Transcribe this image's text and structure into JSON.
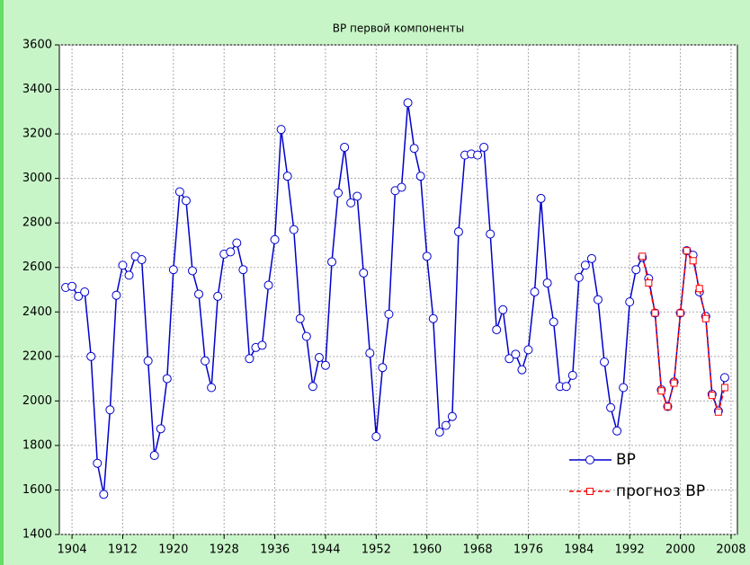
{
  "chart_data": {
    "type": "line",
    "title": "ВР первой компоненты",
    "series": [
      {
        "name": "ВР",
        "color": "#0000cc",
        "marker": "circle",
        "dash": false,
        "x": [
          1903,
          1904,
          1905,
          1906,
          1907,
          1908,
          1909,
          1910,
          1911,
          1912,
          1913,
          1914,
          1915,
          1916,
          1917,
          1918,
          1919,
          1920,
          1921,
          1922,
          1923,
          1924,
          1925,
          1926,
          1927,
          1928,
          1929,
          1930,
          1931,
          1932,
          1933,
          1934,
          1935,
          1936,
          1937,
          1938,
          1939,
          1940,
          1941,
          1942,
          1943,
          1944,
          1945,
          1946,
          1947,
          1948,
          1949,
          1950,
          1951,
          1952,
          1953,
          1954,
          1955,
          1956,
          1957,
          1958,
          1959,
          1960,
          1961,
          1962,
          1963,
          1964,
          1965,
          1966,
          1967,
          1968,
          1969,
          1970,
          1971,
          1972,
          1973,
          1974,
          1975,
          1976,
          1977,
          1978,
          1979,
          1980,
          1981,
          1982,
          1983,
          1984,
          1985,
          1986,
          1987,
          1988,
          1989,
          1990,
          1991,
          1992,
          1993,
          1994,
          1995,
          1996,
          1997,
          1998,
          1999,
          2000,
          2001,
          2002,
          2003,
          2004,
          2005,
          2006,
          2007
        ],
        "values": [
          2510,
          2515,
          2470,
          2490,
          2200,
          1720,
          1580,
          1960,
          2475,
          2610,
          2565,
          2650,
          2635,
          2180,
          1755,
          1875,
          2100,
          2590,
          2940,
          2900,
          2585,
          2480,
          2180,
          2060,
          2470,
          2660,
          2670,
          2710,
          2590,
          2190,
          2240,
          2250,
          2520,
          2725,
          3220,
          3010,
          2770,
          2370,
          2290,
          2065,
          2195,
          2160,
          2625,
          2935,
          3140,
          2890,
          2920,
          2575,
          2215,
          1840,
          2150,
          2390,
          2945,
          2960,
          3340,
          3135,
          3010,
          2650,
          2370,
          1860,
          1890,
          1930,
          2760,
          3105,
          3110,
          3105,
          3140,
          2750,
          2320,
          2410,
          2190,
          2210,
          2140,
          2230,
          2490,
          2910,
          2530,
          2355,
          2065,
          2065,
          2115,
          2555,
          2610,
          2640,
          2455,
          2175,
          1970,
          1865,
          2060,
          2445,
          2590,
          2645,
          2550,
          2395,
          2050,
          1975,
          2085,
          2395,
          2675,
          2655,
          2490,
          2380,
          2030,
          1955,
          2105
        ]
      },
      {
        "name": "прогноз ВР",
        "color": "#ff0000",
        "marker": "square",
        "dash": true,
        "x": [
          1994,
          1995,
          1996,
          1997,
          1998,
          1999,
          2000,
          2001,
          2002,
          2003,
          2004,
          2005,
          2006,
          2007
        ],
        "values": [
          2650,
          2530,
          2395,
          2045,
          1975,
          2080,
          2395,
          2675,
          2630,
          2505,
          2370,
          2025,
          1950,
          2060
        ]
      }
    ],
    "xlim": [
      1902,
      2009
    ],
    "xticks": [
      1904,
      1912,
      1920,
      1928,
      1936,
      1944,
      1952,
      1960,
      1968,
      1976,
      1984,
      1992,
      2000,
      2008
    ],
    "ylim": [
      1400,
      3600
    ],
    "yticks": [
      1400,
      1600,
      1800,
      2000,
      2200,
      2400,
      2600,
      2800,
      3000,
      3200,
      3400,
      3600
    ],
    "grid": true,
    "legend": "lower right"
  }
}
